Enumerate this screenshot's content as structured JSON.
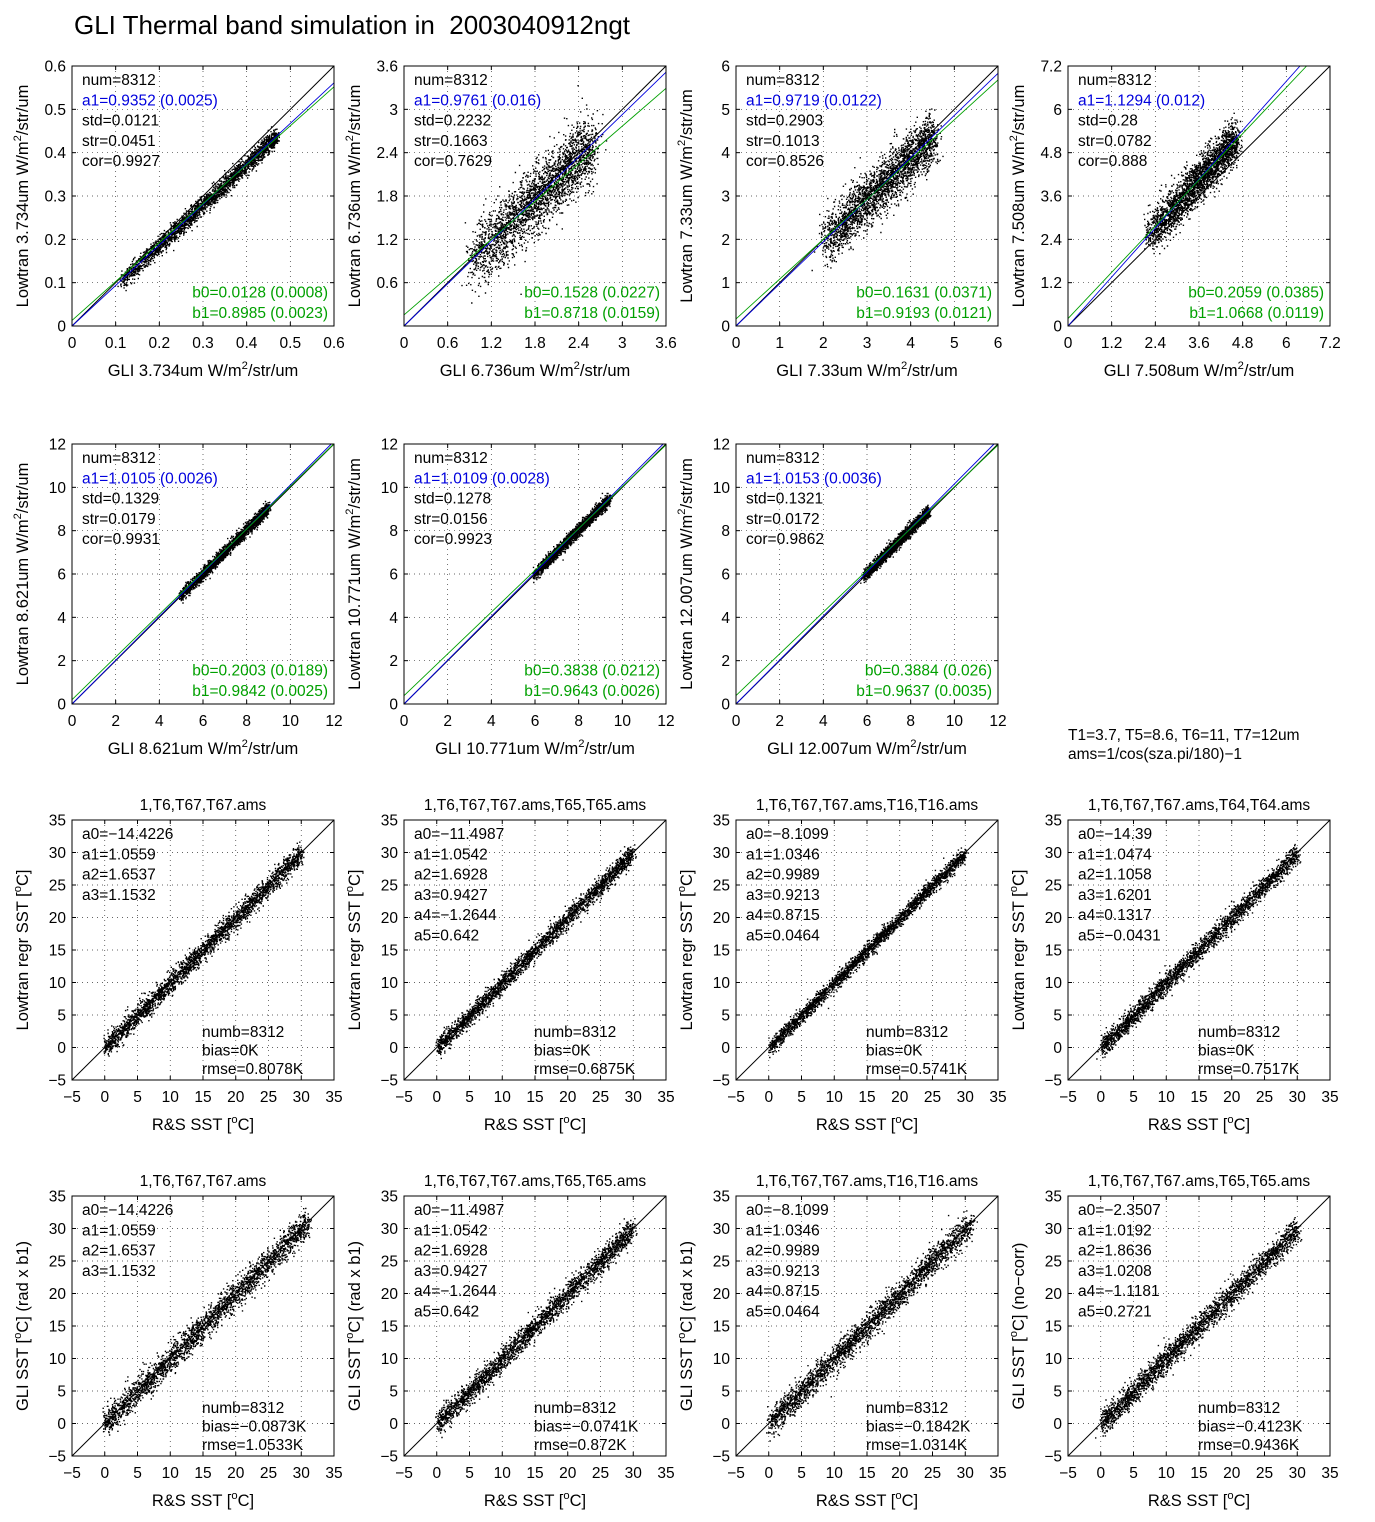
{
  "title": "GLI Thermal band simulation in  2003040912ngt",
  "notes": [
    "T1=3.7, T5=8.6, T6=11, T7=12um",
    "ams=1/cos(sza.pi/180)−1"
  ],
  "colors": {
    "data": "#000000",
    "a1_fit": "#0000dd",
    "b_fit": "#00a000",
    "one_to_one": "#000000"
  },
  "chart_data": [
    {
      "type": "scatter",
      "xlabel": "GLI 3.734um W/m2/str/um",
      "ylabel": "Lowtran 3.734um W/m2/str/um",
      "xlim": [
        0,
        0.6
      ],
      "ylim": [
        0,
        0.6
      ],
      "ticks": [
        "0",
        "0.1",
        "0.2",
        "0.3",
        "0.4",
        "0.5",
        "0.6"
      ],
      "ticks_y": [
        "0",
        "0.1",
        "0.2",
        "0.3",
        "0.4",
        "0.5",
        "0.6"
      ],
      "cloud": {
        "x_range": [
          0.11,
          0.47
        ],
        "spread": 0.01
      },
      "fit": {
        "a1": 0.9352,
        "b0": 0.0128,
        "b1": 0.8985
      },
      "stats_top": [
        "num=8312",
        "a1=0.9352 (0.0025)",
        "std=0.0121",
        "str=0.0451",
        "cor=0.9927"
      ],
      "stats_bottom": [
        "b0=0.0128 (0.0008)",
        "b1=0.8985 (0.0023)"
      ]
    },
    {
      "type": "scatter",
      "xlabel": "GLI 6.736um W/m2/str/um",
      "ylabel": "Lowtran 6.736um W/m2/str/um",
      "xlim": [
        0,
        3.6
      ],
      "ylim": [
        0,
        3.6
      ],
      "ticks": [
        "0",
        "0.6",
        "1.2",
        "1.8",
        "2.4",
        "3",
        "3.6"
      ],
      "ticks_y": [
        "",
        "0.6",
        "1.2",
        "1.8",
        "2.4",
        "3",
        "3.6"
      ],
      "cloud": {
        "x_range": [
          0.9,
          2.6
        ],
        "spread": 0.22
      },
      "fit": {
        "a1": 0.9761,
        "b0": 0.1528,
        "b1": 0.8718
      },
      "stats_top": [
        "num=8312",
        "a1=0.9761 (0.016)",
        "std=0.2232",
        "str=0.1663",
        "cor=0.7629"
      ],
      "stats_bottom": [
        "b0=0.1528 (0.0227)",
        "b1=0.8718 (0.0159)"
      ]
    },
    {
      "type": "scatter",
      "xlabel": "GLI 7.33um W/m2/str/um",
      "ylabel": "Lowtran 7.33um W/m2/str/um",
      "xlim": [
        0,
        6
      ],
      "ylim": [
        0,
        6
      ],
      "ticks": [
        "0",
        "1",
        "2",
        "3",
        "4",
        "5",
        "6"
      ],
      "ticks_y": [
        "0",
        "1",
        "2",
        "3",
        "4",
        "5",
        "6"
      ],
      "cloud": {
        "x_range": [
          2.0,
          4.5
        ],
        "spread": 0.29
      },
      "fit": {
        "a1": 0.9719,
        "b0": 0.1631,
        "b1": 0.9193
      },
      "stats_top": [
        "num=8312",
        "a1=0.9719 (0.0122)",
        "std=0.2903",
        "str=0.1013",
        "cor=0.8526"
      ],
      "stats_bottom": [
        "b0=0.1631 (0.0371)",
        "b1=0.9193 (0.0121)"
      ]
    },
    {
      "type": "scatter",
      "xlabel": "GLI 7.508um W/m2/str/um",
      "ylabel": "Lowtran 7.508um W/m2/str/um",
      "xlim": [
        0,
        7.2
      ],
      "ylim": [
        0,
        7.2
      ],
      "ticks": [
        "0",
        "1.2",
        "2.4",
        "3.6",
        "4.8",
        "6",
        "7.2"
      ],
      "ticks_y": [
        "0",
        "1.2",
        "2.4",
        "3.6",
        "4.8",
        "6",
        "7.2"
      ],
      "cloud": {
        "x_range": [
          2.2,
          4.6
        ],
        "spread": 0.28
      },
      "fit": {
        "a1": 1.1294,
        "b0": 0.2059,
        "b1": 1.0668
      },
      "stats_top": [
        "num=8312",
        "a1=1.1294 (0.012)",
        "std=0.28",
        "str=0.0782",
        "cor=0.888"
      ],
      "stats_bottom": [
        "b0=0.2059 (0.0385)",
        "b1=1.0668 (0.0119)"
      ]
    },
    {
      "type": "scatter",
      "xlabel": "GLI 8.621um W/m2/str/um",
      "ylabel": "Lowtran 8.621um W/m2/str/um",
      "xlim": [
        0,
        12
      ],
      "ylim": [
        0,
        12
      ],
      "ticks": [
        "0",
        "2",
        "4",
        "6",
        "8",
        "10",
        "12"
      ],
      "ticks_y": [
        "0",
        "2",
        "4",
        "6",
        "8",
        "10",
        "12"
      ],
      "cloud": {
        "x_range": [
          4.9,
          9.0
        ],
        "spread": 0.13
      },
      "fit": {
        "a1": 1.0105,
        "b0": 0.2003,
        "b1": 0.9842
      },
      "stats_top": [
        "num=8312",
        "a1=1.0105 (0.0026)",
        "std=0.1329",
        "str=0.0179",
        "cor=0.9931"
      ],
      "stats_bottom": [
        "b0=0.2003 (0.0189)",
        "b1=0.9842 (0.0025)"
      ]
    },
    {
      "type": "scatter",
      "xlabel": "GLI 10.771um W/m2/str/um",
      "ylabel": "Lowtran 10.771um W/m2/str/um",
      "xlim": [
        0,
        12
      ],
      "ylim": [
        0,
        12
      ],
      "ticks": [
        "0",
        "2",
        "4",
        "6",
        "8",
        "10",
        "12"
      ],
      "ticks_y": [
        "0",
        "2",
        "4",
        "6",
        "8",
        "10",
        "12"
      ],
      "cloud": {
        "x_range": [
          5.9,
          9.4
        ],
        "spread": 0.13
      },
      "fit": {
        "a1": 1.0109,
        "b0": 0.3838,
        "b1": 0.9643
      },
      "stats_top": [
        "num=8312",
        "a1=1.0109 (0.0028)",
        "std=0.1278",
        "str=0.0156",
        "cor=0.9923"
      ],
      "stats_bottom": [
        "b0=0.3838 (0.0212)",
        "b1=0.9643 (0.0026)"
      ]
    },
    {
      "type": "scatter",
      "xlabel": "GLI 12.007um W/m2/str/um",
      "ylabel": "Lowtran 12.007um W/m2/str/um",
      "xlim": [
        0,
        12
      ],
      "ylim": [
        0,
        12
      ],
      "ticks": [
        "0",
        "2",
        "4",
        "6",
        "8",
        "10",
        "12"
      ],
      "ticks_y": [
        "0",
        "2",
        "4",
        "6",
        "8",
        "10",
        "12"
      ],
      "cloud": {
        "x_range": [
          5.8,
          8.8
        ],
        "spread": 0.13
      },
      "fit": {
        "a1": 1.0153,
        "b0": 0.3884,
        "b1": 0.9637
      },
      "stats_top": [
        "num=8312",
        "a1=1.0153 (0.0036)",
        "std=0.1321",
        "str=0.0172",
        "cor=0.9862"
      ],
      "stats_bottom": [
        "b0=0.3884 (0.026)",
        "b1=0.9637 (0.0035)"
      ]
    },
    {
      "type": "scatter",
      "title": "1,T6,T67,T67.ams",
      "xlabel": "R&S SST [oC]",
      "ylabel": "Lowtran regr SST [oC]",
      "xlim": [
        -5,
        35
      ],
      "ylim": [
        -5,
        35
      ],
      "ticks": [
        "−5",
        "0",
        "5",
        "10",
        "15",
        "20",
        "25",
        "30",
        "35"
      ],
      "ticks_y": [
        "−5",
        "0",
        "5",
        "10",
        "15",
        "20",
        "25",
        "30",
        "35"
      ],
      "cloud": {
        "x_range": [
          0,
          30
        ],
        "spread": 0.81
      },
      "stats_top": [
        "a0=−14.4226",
        "a1=1.0559",
        "a2=1.6537",
        "a3=1.1532"
      ],
      "stats_bottom": [
        "numb=8312",
        "bias=0K",
        "rmse=0.8078K"
      ]
    },
    {
      "type": "scatter",
      "title": "1,T6,T67,T67.ams,T65,T65.ams",
      "xlabel": "R&S SST [oC]",
      "ylabel": "Lowtran regr SST [oC]",
      "xlim": [
        -5,
        35
      ],
      "ylim": [
        -5,
        35
      ],
      "ticks": [
        "−5",
        "0",
        "5",
        "10",
        "15",
        "20",
        "25",
        "30",
        "35"
      ],
      "ticks_y": [
        "−5",
        "0",
        "5",
        "10",
        "15",
        "20",
        "25",
        "30",
        "35"
      ],
      "cloud": {
        "x_range": [
          0,
          30
        ],
        "spread": 0.69
      },
      "stats_top": [
        "a0=−11.4987",
        "a1=1.0542",
        "a2=1.6928",
        "a3=0.9427",
        "a4=−1.2644",
        "a5=0.642"
      ],
      "stats_bottom": [
        "numb=8312",
        "bias=0K",
        "rmse=0.6875K"
      ]
    },
    {
      "type": "scatter",
      "title": "1,T6,T67,T67.ams,T16,T16.ams",
      "xlabel": "R&S SST [oC]",
      "ylabel": "Lowtran regr SST [oC]",
      "xlim": [
        -5,
        35
      ],
      "ylim": [
        -5,
        35
      ],
      "ticks": [
        "−5",
        "0",
        "5",
        "10",
        "15",
        "20",
        "25",
        "30",
        "35"
      ],
      "ticks_y": [
        "−5",
        "0",
        "5",
        "10",
        "15",
        "20",
        "25",
        "30",
        "35"
      ],
      "cloud": {
        "x_range": [
          0,
          30
        ],
        "spread": 0.57
      },
      "stats_top": [
        "a0=−8.1099",
        "a1=1.0346",
        "a2=0.9989",
        "a3=0.9213",
        "a4=0.8715",
        "a5=0.0464"
      ],
      "stats_bottom": [
        "numb=8312",
        "bias=0K",
        "rmse=0.5741K"
      ]
    },
    {
      "type": "scatter",
      "title": "1,T6,T67,T67.ams,T64,T64.ams",
      "xlabel": "R&S SST [oC]",
      "ylabel": "Lowtran regr SST [oC]",
      "xlim": [
        -5,
        35
      ],
      "ylim": [
        -5,
        35
      ],
      "ticks": [
        "−5",
        "0",
        "5",
        "10",
        "15",
        "20",
        "25",
        "30",
        "35"
      ],
      "ticks_y": [
        "−5",
        "0",
        "5",
        "10",
        "15",
        "20",
        "25",
        "30",
        "35"
      ],
      "cloud": {
        "x_range": [
          0,
          30
        ],
        "spread": 0.75
      },
      "stats_top": [
        "a0=−14.39",
        "a1=1.0474",
        "a2=1.1058",
        "a3=1.6201",
        "a4=0.1317",
        "a5=−0.0431"
      ],
      "stats_bottom": [
        "numb=8312",
        "bias=0K",
        "rmse=0.7517K"
      ]
    },
    {
      "type": "scatter",
      "title": "1,T6,T67,T67.ams",
      "xlabel": "R&S SST [oC]",
      "ylabel": "GLI SST [oC] (rad x b1)",
      "xlim": [
        -5,
        35
      ],
      "ylim": [
        -5,
        35
      ],
      "ticks": [
        "−5",
        "0",
        "5",
        "10",
        "15",
        "20",
        "25",
        "30",
        "35"
      ],
      "ticks_y": [
        "−5",
        "0",
        "5",
        "10",
        "15",
        "20",
        "25",
        "30",
        "35"
      ],
      "cloud": {
        "x_range": [
          0,
          31
        ],
        "spread": 1.05
      },
      "stats_top": [
        "a0=−14.4226",
        "a1=1.0559",
        "a2=1.6537",
        "a3=1.1532"
      ],
      "stats_bottom": [
        "numb=8312",
        "bias=−0.0873K",
        "rmse=1.0533K"
      ]
    },
    {
      "type": "scatter",
      "title": "1,T6,T67,T67.ams,T65,T65.ams",
      "xlabel": "R&S SST [oC]",
      "ylabel": "GLI SST [oC] (rad x b1)",
      "xlim": [
        -5,
        35
      ],
      "ylim": [
        -5,
        35
      ],
      "ticks": [
        "−5",
        "0",
        "5",
        "10",
        "15",
        "20",
        "25",
        "30",
        "35"
      ],
      "ticks_y": [
        "−5",
        "0",
        "5",
        "10",
        "15",
        "20",
        "25",
        "30",
        "35"
      ],
      "cloud": {
        "x_range": [
          0,
          30
        ],
        "spread": 0.87
      },
      "stats_top": [
        "a0=−11.4987",
        "a1=1.0542",
        "a2=1.6928",
        "a3=0.9427",
        "a4=−1.2644",
        "a5=0.642"
      ],
      "stats_bottom": [
        "numb=8312",
        "bias=−0.0741K",
        "rmse=0.872K"
      ]
    },
    {
      "type": "scatter",
      "title": "1,T6,T67,T67.ams,T16,T16.ams",
      "xlabel": "R&S SST [oC]",
      "ylabel": "GLI SST [oC] (rad x b1)",
      "xlim": [
        -5,
        35
      ],
      "ylim": [
        -5,
        35
      ],
      "ticks": [
        "−5",
        "0",
        "5",
        "10",
        "15",
        "20",
        "25",
        "30",
        "35"
      ],
      "ticks_y": [
        "−5",
        "0",
        "5",
        "10",
        "15",
        "20",
        "25",
        "30",
        "35"
      ],
      "cloud": {
        "x_range": [
          0,
          31
        ],
        "spread": 1.03
      },
      "stats_top": [
        "a0=−8.1099",
        "a1=1.0346",
        "a2=0.9989",
        "a3=0.9213",
        "a4=0.8715",
        "a5=0.0464"
      ],
      "stats_bottom": [
        "numb=8312",
        "bias=−0.1842K",
        "rmse=1.0314K"
      ]
    },
    {
      "type": "scatter",
      "title": "1,T6,T67,T67.ams,T65,T65.ams",
      "xlabel": "R&S SST [oC]",
      "ylabel": "GLI SST [oC] (no−corr)",
      "xlim": [
        -5,
        35
      ],
      "ylim": [
        -5,
        35
      ],
      "ticks": [
        "−5",
        "0",
        "5",
        "10",
        "15",
        "20",
        "25",
        "30",
        "35"
      ],
      "ticks_y": [
        "−5",
        "0",
        "5",
        "10",
        "15",
        "20",
        "25",
        "30",
        "35"
      ],
      "cloud": {
        "x_range": [
          0,
          30
        ],
        "spread": 0.94
      },
      "stats_top": [
        "a0=−2.3507",
        "a1=1.0192",
        "a2=1.8636",
        "a3=1.0208",
        "a4=−1.1181",
        "a5=0.2721"
      ],
      "stats_bottom": [
        "numb=8312",
        "bias=−0.4123K",
        "rmse=0.9436K"
      ]
    }
  ]
}
